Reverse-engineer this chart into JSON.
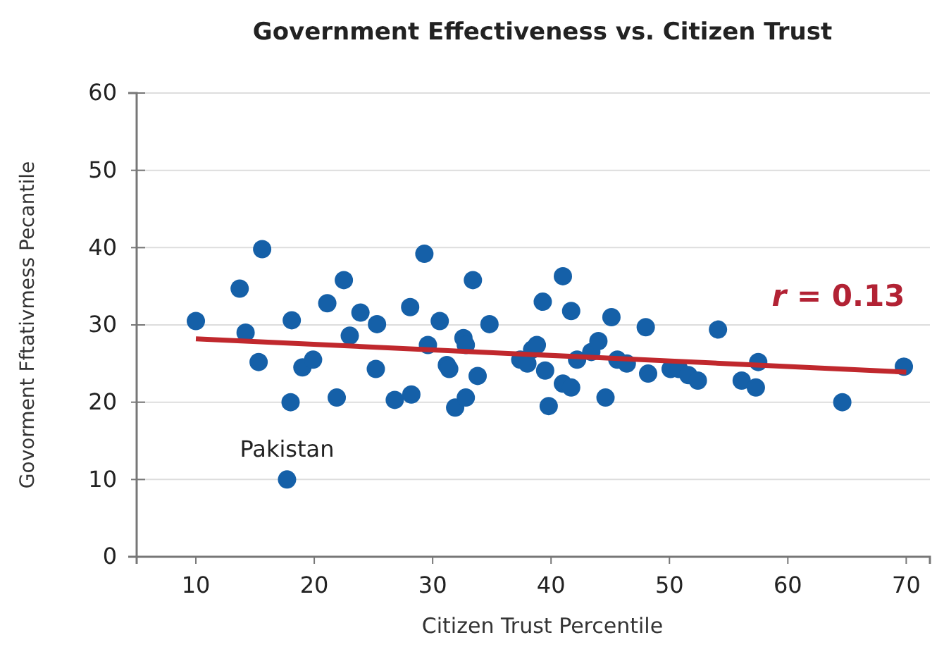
{
  "chart_data": {
    "type": "scatter",
    "title": "Government Effectiveness vs. Citizen Trust",
    "xlabel": "Citizen Trust Percentile",
    "ylabel": "Govorment Fftativmess Pecantile",
    "xlim": [
      5,
      72
    ],
    "ylim": [
      0,
      60
    ],
    "xticks": [
      10,
      20,
      30,
      40,
      50,
      60,
      70
    ],
    "yticks": [
      0,
      10,
      20,
      30,
      40,
      50,
      60
    ],
    "grid": "y",
    "marker": "circle",
    "series": [
      {
        "color": "#1560a8",
        "x": [
          10,
          13.7,
          14.2,
          15.6,
          15.3,
          18.1,
          18,
          17.7,
          19,
          19.9,
          21.1,
          21.9,
          22.5,
          23,
          23.9,
          25.3,
          25.2,
          26.8,
          28.1,
          28.2,
          29.3,
          29.6,
          30.6,
          31.2,
          31.4,
          31.9,
          32.6,
          32.8,
          33.4,
          32.8,
          33.8,
          34.8,
          37.4,
          38,
          38.4,
          38.8,
          39.5,
          39.3,
          39.8,
          41,
          41.7,
          41,
          41.7,
          42.2,
          43.4,
          44,
          44.6,
          45.1,
          45.6,
          46.4,
          48,
          48.2,
          50.1,
          50.8,
          51.6,
          52.4,
          54.1,
          56.1,
          57.3,
          57.5,
          64.6,
          69.8
        ],
        "values": [
          30.5,
          34.7,
          29,
          39.8,
          25.2,
          30.6,
          20,
          10,
          24.5,
          25.5,
          32.8,
          20.6,
          35.8,
          28.6,
          31.6,
          30.1,
          24.3,
          20.3,
          32.3,
          21,
          39.2,
          27.4,
          30.5,
          24.8,
          24.3,
          19.3,
          28.3,
          20.6,
          35.8,
          27.4,
          23.4,
          30.1,
          25.5,
          25,
          26.8,
          27.4,
          24.1,
          33,
          19.5,
          36.3,
          31.8,
          22.4,
          21.9,
          25.5,
          26.5,
          27.9,
          20.6,
          31,
          25.5,
          25,
          29.7,
          23.7,
          24.3,
          24.3,
          23.5,
          22.8,
          29.4,
          22.8,
          21.9,
          25.2,
          20,
          24.6
        ]
      },
      {
        "type": "line",
        "color": "#c0282d",
        "x": [
          10,
          70
        ],
        "values": [
          28.2,
          23.9
        ],
        "marker": "none",
        "line_style": "solid"
      }
    ],
    "annotations": [
      {
        "text": "Pakistan",
        "x": 17.7,
        "y": 10
      },
      "r = 0.13"
    ]
  }
}
